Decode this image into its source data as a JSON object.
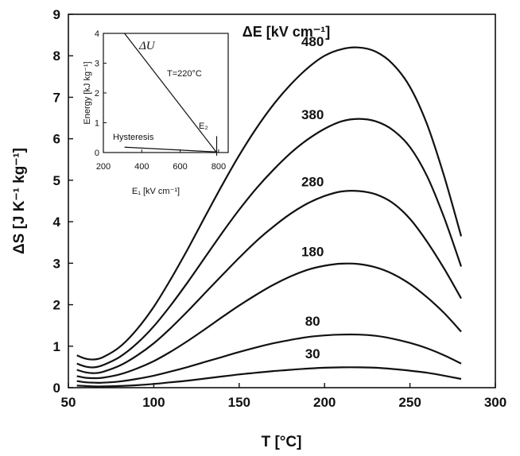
{
  "chart_data": [
    {
      "type": "line",
      "xlabel": "T [°C]",
      "ylabel": "ΔS [J K⁻¹ kg⁻¹]",
      "xlim": [
        50,
        300
      ],
      "ylim": [
        0,
        9
      ],
      "xticks": [
        "50",
        "100",
        "150",
        "200",
        "250",
        "300"
      ],
      "yticks": [
        "0",
        "1",
        "2",
        "3",
        "4",
        "5",
        "6",
        "7",
        "8",
        "9"
      ],
      "legend_title": "ΔE [kV cm⁻¹]",
      "x": [
        55,
        60,
        65,
        70,
        80,
        90,
        100,
        110,
        120,
        130,
        140,
        150,
        160,
        170,
        180,
        190,
        200,
        210,
        220,
        230,
        240,
        250,
        260,
        270,
        280
      ],
      "series": [
        {
          "name": "480",
          "values": [
            0.78,
            0.7,
            0.68,
            0.73,
            0.98,
            1.4,
            1.95,
            2.62,
            3.35,
            4.12,
            4.88,
            5.6,
            6.25,
            6.82,
            7.3,
            7.7,
            8.0,
            8.16,
            8.2,
            8.1,
            7.8,
            7.25,
            6.35,
            5.1,
            3.65
          ]
        },
        {
          "name": "380",
          "values": [
            0.58,
            0.51,
            0.49,
            0.54,
            0.74,
            1.06,
            1.48,
            1.99,
            2.55,
            3.14,
            3.73,
            4.29,
            4.8,
            5.25,
            5.65,
            5.98,
            6.24,
            6.42,
            6.48,
            6.42,
            6.21,
            5.8,
            5.1,
            4.1,
            2.92
          ]
        },
        {
          "name": "280",
          "values": [
            0.43,
            0.37,
            0.35,
            0.38,
            0.53,
            0.77,
            1.07,
            1.44,
            1.85,
            2.28,
            2.71,
            3.13,
            3.53,
            3.88,
            4.19,
            4.44,
            4.62,
            4.73,
            4.74,
            4.66,
            4.45,
            4.07,
            3.52,
            2.87,
            2.15
          ]
        },
        {
          "name": "180",
          "values": [
            0.28,
            0.24,
            0.23,
            0.24,
            0.32,
            0.46,
            0.64,
            0.87,
            1.13,
            1.41,
            1.7,
            1.98,
            2.24,
            2.48,
            2.68,
            2.84,
            2.94,
            2.99,
            2.98,
            2.9,
            2.74,
            2.5,
            2.18,
            1.8,
            1.35
          ]
        },
        {
          "name": "80",
          "values": [
            0.16,
            0.13,
            0.12,
            0.12,
            0.15,
            0.21,
            0.29,
            0.39,
            0.5,
            0.62,
            0.74,
            0.86,
            0.97,
            1.07,
            1.15,
            1.22,
            1.26,
            1.28,
            1.28,
            1.25,
            1.18,
            1.08,
            0.95,
            0.78,
            0.58
          ]
        },
        {
          "name": "30",
          "values": [
            0.05,
            0.04,
            0.03,
            0.03,
            0.04,
            0.06,
            0.09,
            0.13,
            0.17,
            0.22,
            0.27,
            0.32,
            0.36,
            0.4,
            0.43,
            0.46,
            0.48,
            0.49,
            0.49,
            0.48,
            0.45,
            0.41,
            0.36,
            0.29,
            0.21
          ]
        }
      ]
    },
    {
      "type": "line",
      "xlabel": "E₁ [kV cm⁻¹]",
      "ylabel": "Energy [kJ kg⁻¹]",
      "xlim": [
        200,
        850
      ],
      "ylim": [
        0,
        4
      ],
      "xticks": [
        "200",
        "400",
        "600",
        "800"
      ],
      "yticks": [
        "0",
        "1",
        "2",
        "3",
        "4"
      ],
      "annotations": {
        "temperature": "T=220°C",
        "hysteresis": "Hysteresis",
        "e2": "E₂",
        "du": "ΔU"
      },
      "series": [
        {
          "name": "ΔU",
          "x": [
            310,
            790
          ],
          "values": [
            4.0,
            0.0
          ]
        },
        {
          "name": "Hysteresis",
          "x": [
            310,
            790
          ],
          "values": [
            0.18,
            0.02
          ]
        }
      ],
      "e2_marker_x": 790
    }
  ]
}
